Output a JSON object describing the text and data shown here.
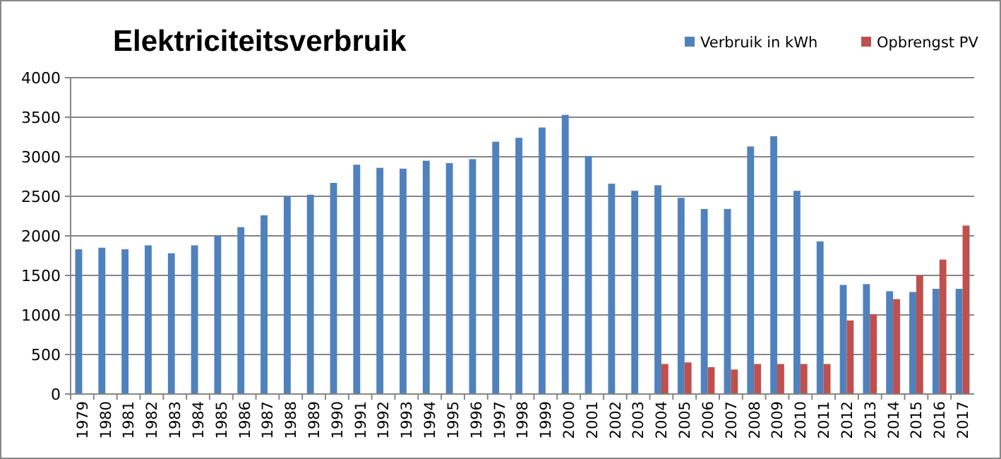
{
  "chart_data": {
    "type": "bar",
    "title": "Elektriciteitsverbruik",
    "categories": [
      "1979",
      "1980",
      "1981",
      "1982",
      "1983",
      "1984",
      "1985",
      "1986",
      "1987",
      "1988",
      "1989",
      "1990",
      "1991",
      "1992",
      "1993",
      "1994",
      "1995",
      "1996",
      "1997",
      "1998",
      "1999",
      "2000",
      "2001",
      "2002",
      "2003",
      "2004",
      "2005",
      "2006",
      "2007",
      "2008",
      "2009",
      "2010",
      "2011",
      "2012",
      "2013",
      "2014",
      "2015",
      "2016",
      "2017"
    ],
    "series": [
      {
        "name": "Verbruik in kWh",
        "color": "#4f81bd",
        "values": [
          1830,
          1850,
          1830,
          1880,
          1780,
          1880,
          2000,
          2110,
          2260,
          2500,
          2520,
          2670,
          2900,
          2860,
          2850,
          2950,
          2920,
          2970,
          3190,
          3240,
          3370,
          3530,
          3010,
          2660,
          2570,
          2640,
          2480,
          2340,
          2340,
          3130,
          3260,
          2570,
          1930,
          1380,
          1390,
          1300,
          1290,
          1330,
          1330
        ]
      },
      {
        "name": "Opbrengst PV",
        "color": "#c0504d",
        "values": [
          null,
          null,
          null,
          null,
          null,
          null,
          null,
          null,
          null,
          null,
          null,
          null,
          null,
          null,
          null,
          null,
          null,
          null,
          null,
          null,
          null,
          null,
          null,
          null,
          null,
          380,
          400,
          340,
          310,
          380,
          380,
          380,
          380,
          930,
          1010,
          1200,
          1500,
          1700,
          2130
        ]
      }
    ],
    "ylim": [
      0,
      4000
    ],
    "yticks": [
      0,
      500,
      1000,
      1500,
      2000,
      2500,
      3000,
      3500,
      4000
    ],
    "grid": "y",
    "legend": "top right"
  }
}
